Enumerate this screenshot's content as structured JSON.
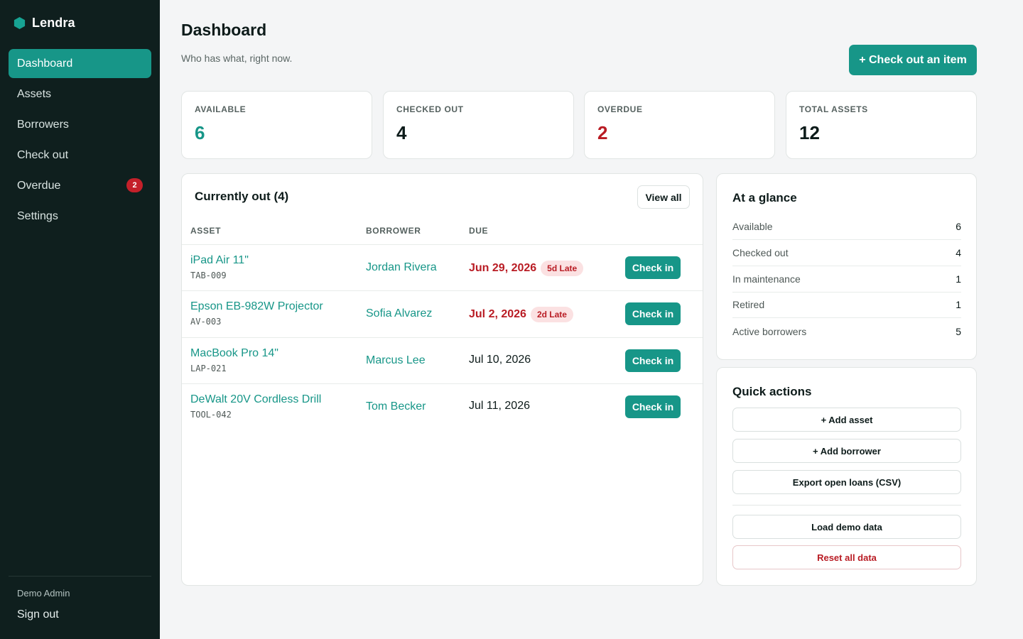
{
  "app": {
    "name": "Lendra",
    "logo_icon": "hexagon-logo-icon",
    "accent": "#179688",
    "danger": "#b91c24"
  },
  "sidebar": {
    "items": [
      {
        "label": "Dashboard",
        "active": true
      },
      {
        "label": "Assets"
      },
      {
        "label": "Borrowers"
      },
      {
        "label": "Check out"
      },
      {
        "label": "Overdue",
        "badge": "2"
      },
      {
        "label": "Settings"
      }
    ],
    "user": "Demo Admin",
    "sign_out": "Sign out"
  },
  "header": {
    "title": "Dashboard",
    "subtitle": "Who has what, right now.",
    "primary_action": "+ Check out an item"
  },
  "stats": [
    {
      "label": "AVAILABLE",
      "value": "6"
    },
    {
      "label": "CHECKED OUT",
      "value": "4"
    },
    {
      "label": "OVERDUE",
      "value": "2"
    },
    {
      "label": "TOTAL ASSETS",
      "value": "12"
    }
  ],
  "loans": {
    "title": "Currently out (4)",
    "view_all": "View all",
    "columns": [
      "ASSET",
      "BORROWER",
      "DUE"
    ],
    "rows": [
      {
        "asset": "iPad Air 11\"",
        "tag": "TAB-009",
        "borrower": "Jordan Rivera",
        "due": "Jun 29, 2026",
        "late": "5d Late",
        "action": "Check in"
      },
      {
        "asset": "Epson EB-982W Projector",
        "tag": "AV-003",
        "borrower": "Sofia Alvarez",
        "due": "Jul 2, 2026",
        "late": "2d Late",
        "action": "Check in"
      },
      {
        "asset": "MacBook Pro 14\"",
        "tag": "LAP-021",
        "borrower": "Marcus Lee",
        "due": "Jul 10, 2026",
        "late": "",
        "action": "Check in"
      },
      {
        "asset": "DeWalt 20V Cordless Drill",
        "tag": "TOOL-042",
        "borrower": "Tom Becker",
        "due": "Jul 11, 2026",
        "late": "",
        "action": "Check in"
      }
    ]
  },
  "glance": {
    "title": "At a glance",
    "rows": [
      {
        "label": "Available",
        "value": "6"
      },
      {
        "label": "Checked out",
        "value": "4"
      },
      {
        "label": "In maintenance",
        "value": "1"
      },
      {
        "label": "Retired",
        "value": "1"
      },
      {
        "label": "Active borrowers",
        "value": "5"
      }
    ]
  },
  "quick_actions": {
    "title": "Quick actions",
    "add_asset": "+ Add asset",
    "add_borrower": "+ Add borrower",
    "export": "Export open loans (CSV)",
    "load_demo": "Load demo data",
    "reset": "Reset all data"
  }
}
